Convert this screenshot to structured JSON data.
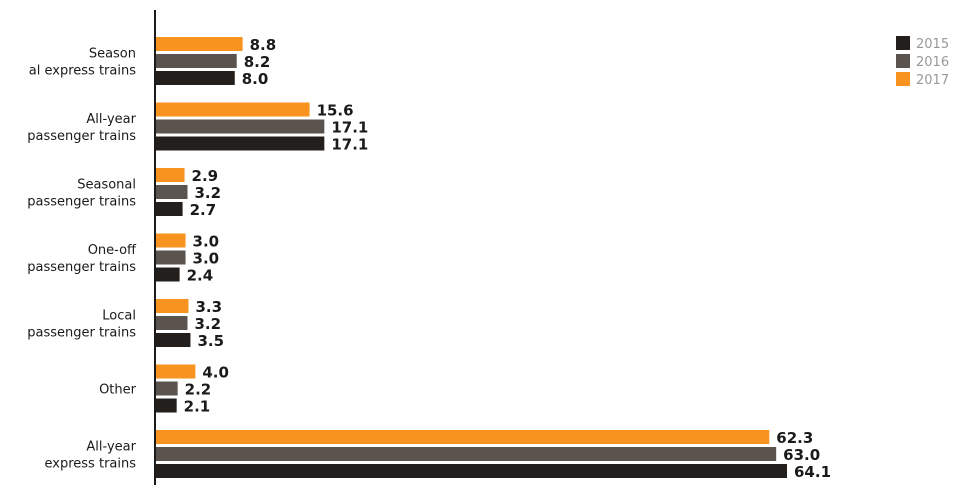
{
  "chart_data": {
    "type": "bar",
    "orientation": "horizontal",
    "categories": [
      [
        "Season",
        "al express trains"
      ],
      [
        "All-year",
        "passenger trains"
      ],
      [
        "Seasonal",
        "passenger trains"
      ],
      [
        "One-off",
        "passenger trains"
      ],
      [
        "Local",
        "passenger trains"
      ],
      [
        "Other"
      ],
      [
        "All-year",
        "express trains"
      ]
    ],
    "series": [
      {
        "name": "2017",
        "color": "#f7931e",
        "values": [
          8.8,
          15.6,
          2.9,
          3.0,
          3.3,
          4.0,
          62.3
        ],
        "labels": [
          "8.8",
          "15.6",
          "2.9",
          "3.0",
          "3.3",
          "4.0",
          "62.3"
        ]
      },
      {
        "name": "2016",
        "color": "#5a534e",
        "values": [
          8.2,
          17.1,
          3.2,
          3.0,
          3.2,
          2.2,
          63.0
        ],
        "labels": [
          "8.2",
          "17.1",
          "3.2",
          "3.0",
          "3.2",
          "2.2",
          "63.0"
        ]
      },
      {
        "name": "2015",
        "color": "#231f1c",
        "values": [
          8.0,
          17.1,
          2.7,
          2.4,
          3.5,
          2.1,
          64.1
        ],
        "labels": [
          "8.0",
          "17.1",
          "2.7",
          "2.4",
          "3.5",
          "2.1",
          "64.1"
        ]
      }
    ],
    "legend": {
      "placement": "top-right",
      "order": [
        "2015",
        "2016",
        "2017"
      ]
    },
    "xlim": [
      0,
      64.1
    ],
    "grid": false
  }
}
